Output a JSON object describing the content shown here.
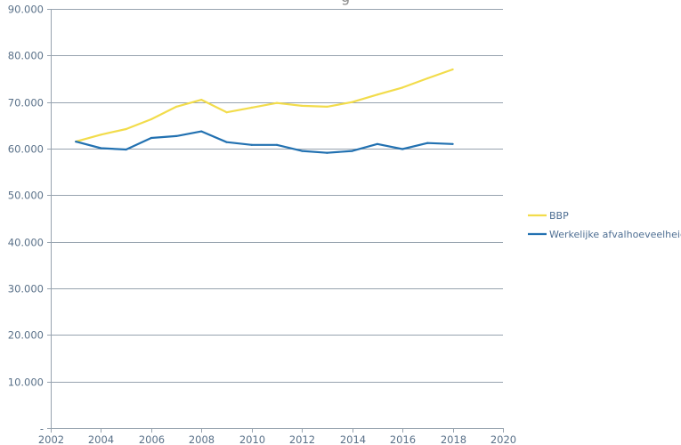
{
  "chart_data": {
    "type": "line",
    "title_fragment": "g",
    "xlabel": "",
    "ylabel": "",
    "xlim": [
      2002,
      2020
    ],
    "ylim": [
      0,
      90000
    ],
    "grid": true,
    "legend_position": "right",
    "x_ticks": [
      "2002",
      "2004",
      "2006",
      "2008",
      "2010",
      "2012",
      "2014",
      "2016",
      "2018",
      "2020"
    ],
    "x_tick_values": [
      2002,
      2004,
      2006,
      2008,
      2010,
      2012,
      2014,
      2016,
      2018,
      2020
    ],
    "y_ticks": [
      "-",
      "10.000",
      "20.000",
      "30.000",
      "40.000",
      "50.000",
      "60.000",
      "70.000",
      "80.000",
      "90.000"
    ],
    "y_tick_values": [
      0,
      10000,
      20000,
      30000,
      40000,
      50000,
      60000,
      70000,
      80000,
      90000
    ],
    "x": [
      2003,
      2004,
      2005,
      2006,
      2007,
      2008,
      2009,
      2010,
      2011,
      2012,
      2013,
      2014,
      2015,
      2016,
      2017,
      2018
    ],
    "series": [
      {
        "name": "BBP",
        "color": "#f2dc4b",
        "values": [
          61500,
          63000,
          64200,
          66300,
          69000,
          70500,
          67800,
          68800,
          69800,
          69200,
          69000,
          70000,
          71600,
          73100,
          75100,
          77000
        ]
      },
      {
        "name": "Werkelijke afvalhoeveelheid",
        "color": "#2271b1",
        "values": [
          61500,
          60100,
          59800,
          62300,
          62700,
          63700,
          61400,
          60800,
          60800,
          59500,
          59100,
          59500,
          61000,
          59900,
          61200,
          61000
        ]
      }
    ]
  }
}
